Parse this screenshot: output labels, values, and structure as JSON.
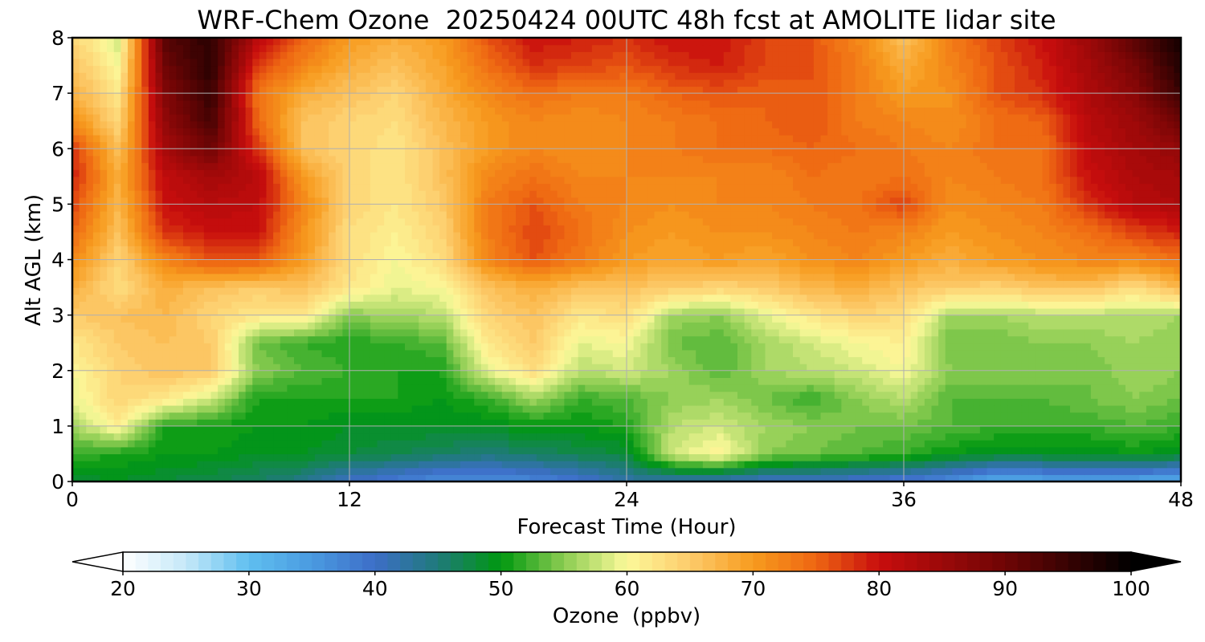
{
  "chart_data": {
    "type": "heatmap",
    "title": "WRF-Chem Ozone  20250424 00UTC 48h fcst at AMOLITE lidar site",
    "xlabel": "Forecast Time (Hour)",
    "ylabel": "Alt AGL (km)",
    "xlim": [
      0,
      48
    ],
    "ylim": [
      0,
      8
    ],
    "xticks": [
      "0",
      "12",
      "24",
      "36",
      "48"
    ],
    "yticks": [
      "0",
      "1",
      "2",
      "3",
      "4",
      "5",
      "6",
      "7",
      "8"
    ],
    "grid": true,
    "x_hours": [
      0,
      2,
      4,
      6,
      8,
      10,
      12,
      14,
      16,
      18,
      20,
      22,
      24,
      26,
      28,
      30,
      32,
      34,
      36,
      38,
      40,
      42,
      44,
      46,
      48
    ],
    "z_km": [
      0,
      0.5,
      1,
      1.5,
      2,
      2.5,
      3,
      3.5,
      4,
      4.5,
      5,
      5.5,
      6,
      6.5,
      7,
      7.5,
      8
    ],
    "ozone_ppbv": [
      [
        48,
        49,
        48,
        47,
        46,
        44,
        40,
        38,
        36,
        36,
        37,
        39,
        42,
        42,
        41,
        40,
        40,
        39,
        38,
        36,
        32,
        33,
        34,
        33,
        32
      ],
      [
        52,
        51,
        50,
        50,
        49,
        49,
        48,
        47,
        46,
        45,
        46,
        47,
        48,
        58,
        61,
        55,
        54,
        53,
        52,
        50,
        49,
        49,
        49,
        50,
        49
      ],
      [
        56,
        61,
        51,
        51,
        50,
        50,
        49,
        49,
        49,
        49,
        50,
        50,
        51,
        57,
        58,
        56,
        55,
        54,
        54,
        53,
        52,
        52,
        52,
        53,
        52
      ],
      [
        59,
        64,
        62,
        58,
        51,
        51,
        51,
        51,
        50,
        52,
        56,
        52,
        53,
        55,
        56,
        54,
        52,
        55,
        57,
        53,
        53,
        53,
        54,
        55,
        54
      ],
      [
        60,
        64,
        66,
        65,
        55,
        53,
        52,
        51,
        51,
        59,
        63,
        57,
        58,
        56,
        53,
        56,
        57,
        58,
        60,
        55,
        55,
        55,
        54,
        56,
        55
      ],
      [
        62,
        65,
        66,
        65,
        54,
        52,
        51,
        52,
        53,
        62,
        65,
        59,
        60,
        54,
        53,
        56,
        58,
        60,
        61,
        54,
        54,
        55,
        55,
        56,
        55
      ],
      [
        65,
        66,
        67,
        64,
        62,
        62,
        55,
        56,
        57,
        64,
        66,
        62,
        63,
        56,
        55,
        59,
        62,
        64,
        63,
        56,
        56,
        57,
        57,
        57,
        56
      ],
      [
        68,
        63,
        68,
        66,
        65,
        66,
        62,
        59,
        60,
        66,
        68,
        66,
        66,
        65,
        64,
        65,
        67,
        68,
        66,
        65,
        64,
        66,
        66,
        63,
        67
      ],
      [
        72,
        64,
        72,
        76,
        76,
        70,
        63,
        60,
        63,
        72,
        76,
        73,
        70,
        69,
        70,
        69,
        71,
        72,
        70,
        68,
        70,
        71,
        72,
        72,
        74
      ],
      [
        75,
        66,
        78,
        80,
        80,
        71,
        63,
        61,
        64,
        73,
        77,
        74,
        71,
        70,
        71,
        71,
        72,
        73,
        72,
        70,
        71,
        72,
        74,
        77,
        79
      ],
      [
        77,
        67,
        80,
        82,
        81,
        72,
        64,
        62,
        65,
        73,
        76,
        73,
        72,
        71,
        72,
        72,
        73,
        74,
        77,
        71,
        72,
        73,
        78,
        82,
        83
      ],
      [
        79,
        68,
        81,
        84,
        82,
        70,
        64,
        62,
        66,
        72,
        74,
        72,
        72,
        72,
        72,
        72,
        74,
        73,
        74,
        72,
        73,
        74,
        80,
        83,
        84
      ],
      [
        78,
        66,
        84,
        90,
        78,
        66,
        64,
        62,
        66,
        70,
        72,
        71,
        72,
        73,
        74,
        74,
        75,
        74,
        73,
        72,
        74,
        74,
        81,
        84,
        86
      ],
      [
        71,
        64,
        86,
        94,
        75,
        66,
        64,
        63,
        67,
        70,
        72,
        71,
        72,
        73,
        74,
        75,
        76,
        73,
        72,
        71,
        74,
        75,
        82,
        85,
        90
      ],
      [
        68,
        62,
        88,
        95,
        74,
        68,
        66,
        64,
        68,
        72,
        74,
        73,
        73,
        75,
        76,
        75,
        76,
        73,
        70,
        71,
        76,
        78,
        83,
        87,
        95
      ],
      [
        66,
        60,
        90,
        96,
        78,
        72,
        68,
        66,
        69,
        74,
        78,
        77,
        76,
        78,
        79,
        77,
        76,
        73,
        68,
        72,
        76,
        79,
        84,
        89,
        97
      ],
      [
        64,
        58,
        92,
        96,
        82,
        75,
        70,
        68,
        70,
        76,
        80,
        79,
        78,
        80,
        80,
        77,
        76,
        72,
        66,
        73,
        77,
        80,
        85,
        92,
        98
      ]
    ],
    "colorbar": {
      "label": "Ozone  (ppbv)",
      "min": 20,
      "max": 100,
      "step": 1,
      "extend": "both",
      "ticks": [
        "20",
        "30",
        "40",
        "50",
        "60",
        "70",
        "80",
        "90",
        "100"
      ],
      "stops": [
        {
          "v": 20,
          "c": "#ffffff"
        },
        {
          "v": 25,
          "c": "#c5e8f8"
        },
        {
          "v": 30,
          "c": "#5fbff0"
        },
        {
          "v": 35,
          "c": "#4a9ae0"
        },
        {
          "v": 40,
          "c": "#3d6ec7"
        },
        {
          "v": 45,
          "c": "#1f7a7a"
        },
        {
          "v": 50,
          "c": "#00980f"
        },
        {
          "v": 55,
          "c": "#8ccc52"
        },
        {
          "v": 60,
          "c": "#fcf99a"
        },
        {
          "v": 65,
          "c": "#fdcb6b"
        },
        {
          "v": 70,
          "c": "#f79b1e"
        },
        {
          "v": 75,
          "c": "#ee6612"
        },
        {
          "v": 80,
          "c": "#c80d0d"
        },
        {
          "v": 90,
          "c": "#6e0505"
        },
        {
          "v": 100,
          "c": "#000000"
        }
      ]
    }
  }
}
